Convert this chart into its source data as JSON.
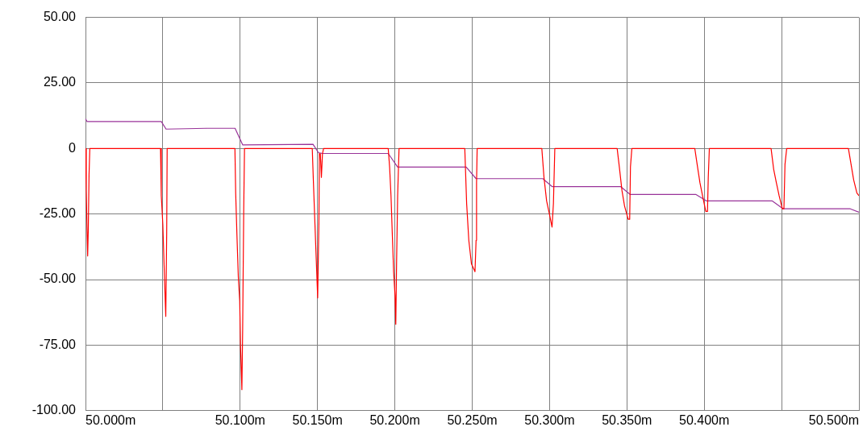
{
  "chart_data": {
    "type": "line",
    "grid": true,
    "xlim": [
      50.0,
      50.5
    ],
    "xticks": [
      {
        "value": 50.0,
        "label": "50.000m"
      },
      {
        "value": 50.05,
        "label": null
      },
      {
        "value": 50.1,
        "label": "50.100m"
      },
      {
        "value": 50.15,
        "label": "50.150m"
      },
      {
        "value": 50.2,
        "label": "50.200m"
      },
      {
        "value": 50.25,
        "label": "50.250m"
      },
      {
        "value": 50.3,
        "label": "50.300m"
      },
      {
        "value": 50.35,
        "label": "50.350m"
      },
      {
        "value": 50.4,
        "label": "50.400m"
      },
      {
        "value": 50.45,
        "label": null
      },
      {
        "value": 50.5,
        "label": "50.500m"
      }
    ],
    "ylim": [
      -100,
      50
    ],
    "yticks": [
      {
        "value": -100,
        "label": "-100.00"
      },
      {
        "value": -75,
        "label": "-75.00"
      },
      {
        "value": -50,
        "label": "-50.00"
      },
      {
        "value": -25,
        "label": "-25.00"
      },
      0,
      {
        "value": 25,
        "label": "25.00"
      },
      {
        "value": 50,
        "label": "50.00"
      }
    ],
    "series": [
      {
        "color": "#ff0000",
        "x": [
          50.0,
          50.0005,
          50.001,
          50.0014,
          50.0018,
          50.0023,
          50.0028,
          50.0485,
          50.049,
          50.05,
          50.0511,
          50.0519,
          50.0525,
          50.0528,
          50.0966,
          50.0971,
          50.0979,
          50.0988,
          50.0997,
          50.1002,
          50.1011,
          50.1016,
          50.1023,
          50.1028,
          50.1466,
          50.1473,
          50.1489,
          50.1501,
          50.1509,
          50.1512,
          50.1518,
          50.1525,
          50.1532,
          50.1539,
          50.1957,
          50.1966,
          50.1975,
          50.1983,
          50.1992,
          50.2001,
          50.2006,
          50.2011,
          50.2018,
          50.2027,
          50.2452,
          50.2464,
          50.2478,
          50.2495,
          50.2518,
          50.2525,
          50.2528,
          50.2532,
          50.295,
          50.2964,
          50.2981,
          50.2999,
          50.3016,
          50.3025,
          50.3034,
          50.3437,
          50.3451,
          50.3468,
          50.3485,
          50.3508,
          50.3518,
          50.3523,
          50.3532,
          50.3939,
          50.3954,
          50.3972,
          50.3989,
          50.401,
          50.4021,
          50.4026,
          50.4033,
          50.4432,
          50.4449,
          50.4466,
          50.4484,
          50.4505,
          50.4515,
          50.4522,
          50.4533,
          50.4932,
          50.4949,
          50.4966,
          50.4987,
          50.5
        ],
        "values": [
          0,
          -16,
          -31,
          -41,
          -31,
          -10,
          0,
          0,
          -18,
          -29,
          -50,
          -64,
          -32,
          0,
          0,
          -17,
          -33,
          -49,
          -58,
          -75,
          -92,
          -69,
          -23,
          0,
          0,
          -12,
          -38,
          -57,
          -28,
          -2,
          -2,
          -11,
          -2,
          0,
          0,
          -7,
          -18,
          -32,
          -47,
          -56,
          -67,
          -44,
          -18,
          0,
          0,
          -21,
          -35,
          -44,
          -47,
          -35,
          -13,
          0,
          0,
          -11,
          -20,
          -25,
          -30,
          -21,
          0,
          0,
          -7,
          -16,
          -22,
          -27,
          -27,
          -7,
          0,
          0,
          -6,
          -13,
          -18,
          -24,
          -24,
          -11,
          0,
          0,
          -8,
          -13,
          -18,
          -23,
          -23,
          -6,
          0,
          0,
          -6,
          -12,
          -17,
          -18
        ]
      },
      {
        "color": "#993399",
        "x": [
          50.0,
          50.001,
          50.049,
          50.0521,
          50.0782,
          50.0967,
          50.1016,
          50.1471,
          50.1506,
          50.1532,
          50.1957,
          50.2018,
          50.2461,
          50.2525,
          50.2956,
          50.3016,
          50.3459,
          50.352,
          50.3945,
          50.4015,
          50.444,
          50.451,
          50.4944,
          50.5
        ],
        "values": [
          11.3,
          10.3,
          10.3,
          7.4,
          7.7,
          7.7,
          1.4,
          1.6,
          -1.6,
          -1.9,
          -1.9,
          -7.1,
          -7.1,
          -11.5,
          -11.5,
          -14.5,
          -14.5,
          -17.5,
          -17.5,
          -20,
          -20,
          -23,
          -23,
          -24.3
        ]
      }
    ]
  }
}
